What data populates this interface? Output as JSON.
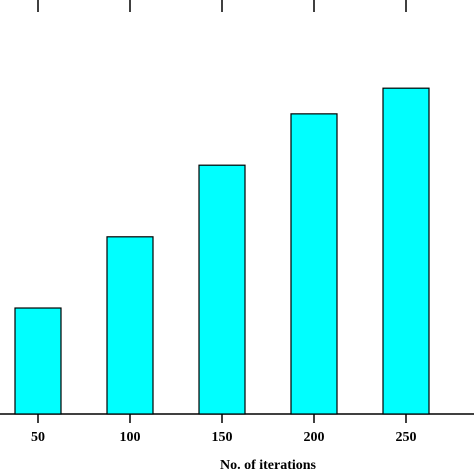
{
  "chart_data": {
    "type": "bar",
    "x_label": "No. of iterations",
    "categories": [
      "50",
      "100",
      "150",
      "200",
      "250"
    ],
    "values": [
      25.6,
      42.8,
      60.1,
      72.5,
      78.7
    ],
    "color": "#00ffff",
    "ylim": [
      0,
      100
    ]
  }
}
